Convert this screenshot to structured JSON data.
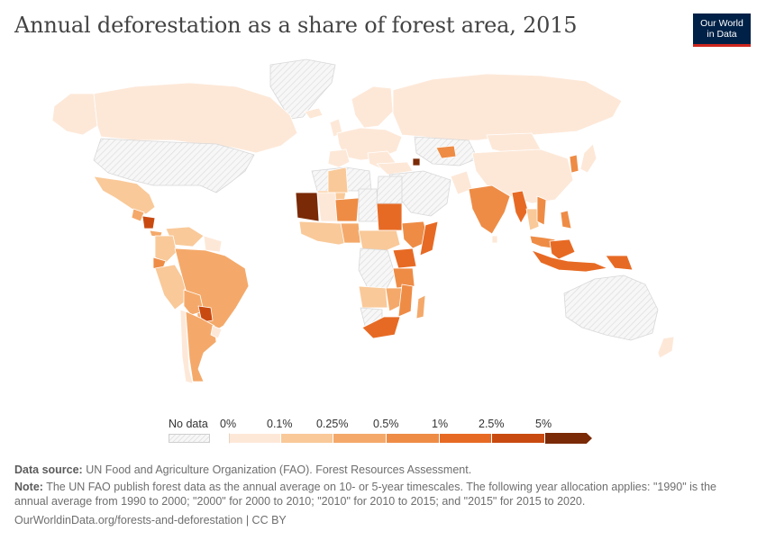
{
  "title": "Annual deforestation as a share of forest area, 2015",
  "logo": {
    "line1": "Our World",
    "line2": "in Data"
  },
  "legend": {
    "nodata_label": "No data",
    "ticks": [
      "0%",
      "0.1%",
      "0.25%",
      "0.5%",
      "1%",
      "2.5%",
      "5%"
    ],
    "bins": [
      {
        "from": 0,
        "to": 0.1,
        "color": "#fde8d8"
      },
      {
        "from": 0.1,
        "to": 0.25,
        "color": "#f9c999"
      },
      {
        "from": 0.25,
        "to": 0.5,
        "color": "#f4a96a"
      },
      {
        "from": 0.5,
        "to": 1,
        "color": "#ee8c46"
      },
      {
        "from": 1,
        "to": 2.5,
        "color": "#e76a24"
      },
      {
        "from": 2.5,
        "to": 5,
        "color": "#c94a10"
      },
      {
        "from": 5,
        "to": null,
        "color": "#7a2a06"
      }
    ]
  },
  "colors": {
    "nodata_hatch": "#e2e2e2",
    "border": "#ffffff"
  },
  "footer": {
    "source_label": "Data source:",
    "source_text": "UN Food and Agriculture Organization (FAO). Forest Resources Assessment.",
    "note_label": "Note:",
    "note_text": "The UN FAO publish forest data as the annual average on 10- or 5-year timescales. The following year allocation applies: \"1990\" is the annual average from 1990 to 2000; \"2000\" for 2000 to 2010; \"2010\" for 2010 to 2015; and \"2015\" for 2015 to 2020.",
    "url": "OurWorldinData.org/forests-and-deforestation | CC BY"
  }
}
